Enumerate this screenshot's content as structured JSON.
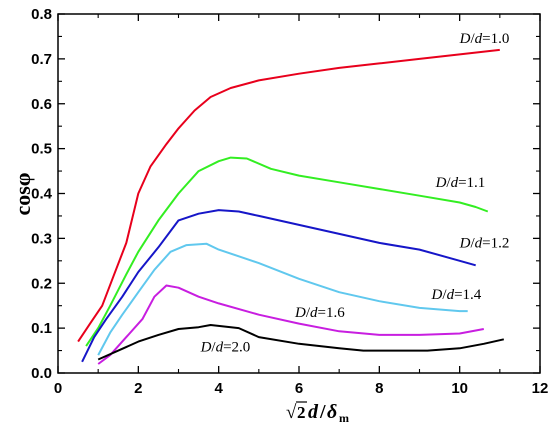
{
  "chart_data": {
    "type": "line",
    "ylabel": "cosφ",
    "xlabel": {
      "radical": "√",
      "two": "2",
      "d": "d",
      "slash": "/",
      "delta": "δ",
      "sub": "m"
    },
    "xlim": [
      0,
      12
    ],
    "ylim": [
      0,
      0.8
    ],
    "xticks": [
      0,
      2,
      4,
      6,
      8,
      10,
      12
    ],
    "yticks": [
      0.0,
      0.1,
      0.2,
      0.3,
      0.4,
      0.5,
      0.6,
      0.7,
      0.8
    ],
    "xtick_labels": [
      "0",
      "2",
      "4",
      "6",
      "8",
      "10",
      "12"
    ],
    "ytick_labels": [
      "0.0",
      "0.1",
      "0.2",
      "0.3",
      "0.4",
      "0.5",
      "0.6",
      "0.7",
      "0.8"
    ],
    "series": [
      {
        "name": "D/d=1.0",
        "ratio": "1.0",
        "color": "#e8001c",
        "label_at": [
          10.0,
          0.735
        ],
        "points": [
          [
            0.5,
            0.07
          ],
          [
            0.8,
            0.11
          ],
          [
            1.1,
            0.15
          ],
          [
            1.4,
            0.22
          ],
          [
            1.7,
            0.29
          ],
          [
            2.0,
            0.4
          ],
          [
            2.3,
            0.46
          ],
          [
            2.7,
            0.51
          ],
          [
            3.0,
            0.545
          ],
          [
            3.4,
            0.585
          ],
          [
            3.8,
            0.615
          ],
          [
            4.3,
            0.635
          ],
          [
            5.0,
            0.652
          ],
          [
            6.0,
            0.667
          ],
          [
            7.0,
            0.68
          ],
          [
            8.0,
            0.69
          ],
          [
            9.0,
            0.7
          ],
          [
            10.0,
            0.71
          ],
          [
            11.0,
            0.72
          ]
        ]
      },
      {
        "name": "D/d=1.1",
        "ratio": "1.1",
        "color": "#33ee22",
        "label_at": [
          9.4,
          0.415
        ],
        "points": [
          [
            0.7,
            0.06
          ],
          [
            1.0,
            0.1
          ],
          [
            1.3,
            0.15
          ],
          [
            1.7,
            0.22
          ],
          [
            2.0,
            0.27
          ],
          [
            2.5,
            0.34
          ],
          [
            3.0,
            0.4
          ],
          [
            3.5,
            0.45
          ],
          [
            4.0,
            0.472
          ],
          [
            4.3,
            0.48
          ],
          [
            4.7,
            0.478
          ],
          [
            5.3,
            0.455
          ],
          [
            6.0,
            0.44
          ],
          [
            7.0,
            0.425
          ],
          [
            8.0,
            0.41
          ],
          [
            9.0,
            0.395
          ],
          [
            10.0,
            0.38
          ],
          [
            10.4,
            0.37
          ],
          [
            10.7,
            0.36
          ]
        ]
      },
      {
        "name": "D/d=1.2",
        "ratio": "1.2",
        "color": "#1616c8",
        "label_at": [
          10.0,
          0.28
        ],
        "points": [
          [
            0.6,
            0.025
          ],
          [
            0.9,
            0.08
          ],
          [
            1.2,
            0.12
          ],
          [
            1.6,
            0.17
          ],
          [
            2.0,
            0.225
          ],
          [
            2.5,
            0.28
          ],
          [
            3.0,
            0.34
          ],
          [
            3.5,
            0.355
          ],
          [
            4.0,
            0.363
          ],
          [
            4.5,
            0.36
          ],
          [
            5.0,
            0.35
          ],
          [
            6.0,
            0.33
          ],
          [
            7.0,
            0.31
          ],
          [
            8.0,
            0.29
          ],
          [
            9.0,
            0.275
          ],
          [
            10.0,
            0.25
          ],
          [
            10.4,
            0.24
          ]
        ]
      },
      {
        "name": "D/d=1.4",
        "ratio": "1.4",
        "color": "#60c8ee",
        "label_at": [
          9.3,
          0.165
        ],
        "points": [
          [
            1.0,
            0.04
          ],
          [
            1.3,
            0.09
          ],
          [
            1.6,
            0.13
          ],
          [
            2.0,
            0.18
          ],
          [
            2.4,
            0.23
          ],
          [
            2.8,
            0.27
          ],
          [
            3.2,
            0.285
          ],
          [
            3.7,
            0.288
          ],
          [
            4.0,
            0.275
          ],
          [
            4.5,
            0.26
          ],
          [
            5.0,
            0.245
          ],
          [
            6.0,
            0.21
          ],
          [
            7.0,
            0.18
          ],
          [
            8.0,
            0.16
          ],
          [
            9.0,
            0.145
          ],
          [
            10.0,
            0.138
          ],
          [
            10.2,
            0.138
          ]
        ]
      },
      {
        "name": "D/d=1.6",
        "ratio": "1.6",
        "color": "#c81ee0",
        "label_at": [
          5.9,
          0.125
        ],
        "points": [
          [
            1.0,
            0.02
          ],
          [
            1.3,
            0.04
          ],
          [
            1.7,
            0.08
          ],
          [
            2.1,
            0.12
          ],
          [
            2.4,
            0.17
          ],
          [
            2.7,
            0.195
          ],
          [
            3.0,
            0.19
          ],
          [
            3.5,
            0.17
          ],
          [
            4.0,
            0.155
          ],
          [
            5.0,
            0.13
          ],
          [
            6.0,
            0.11
          ],
          [
            7.0,
            0.093
          ],
          [
            8.0,
            0.085
          ],
          [
            9.0,
            0.085
          ],
          [
            10.0,
            0.088
          ],
          [
            10.6,
            0.098
          ]
        ]
      },
      {
        "name": "D/d=2.0",
        "ratio": "2.0",
        "color": "#000000",
        "label_at": [
          3.55,
          0.048
        ],
        "points": [
          [
            1.0,
            0.03
          ],
          [
            1.5,
            0.05
          ],
          [
            2.0,
            0.07
          ],
          [
            2.5,
            0.085
          ],
          [
            3.0,
            0.098
          ],
          [
            3.5,
            0.102
          ],
          [
            3.8,
            0.107
          ],
          [
            4.5,
            0.1
          ],
          [
            5.0,
            0.08
          ],
          [
            6.0,
            0.065
          ],
          [
            7.0,
            0.055
          ],
          [
            7.6,
            0.05
          ],
          [
            8.5,
            0.05
          ],
          [
            9.2,
            0.05
          ],
          [
            10.0,
            0.055
          ],
          [
            10.6,
            0.065
          ],
          [
            11.1,
            0.075
          ]
        ]
      }
    ]
  }
}
